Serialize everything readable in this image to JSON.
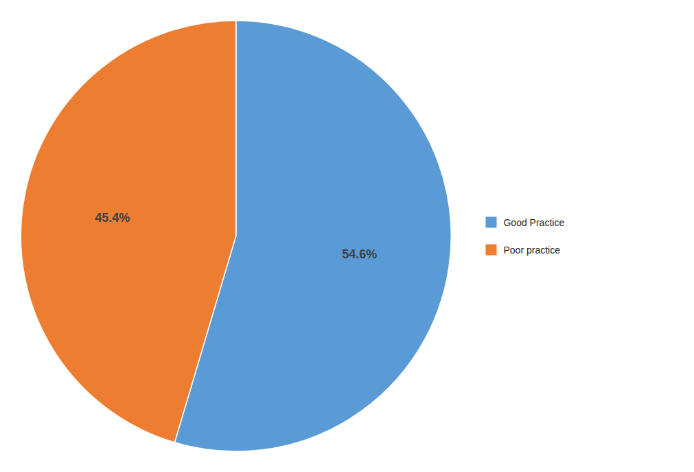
{
  "chart_data": {
    "type": "pie",
    "categories": [
      "Good Practice",
      "Poor practice"
    ],
    "values": [
      54.6,
      45.4
    ],
    "value_labels": [
      "54.6%",
      "45.4%"
    ],
    "colors": [
      "#5B9BD5",
      "#ED7D31"
    ],
    "data_labels": true,
    "legend": "right"
  }
}
